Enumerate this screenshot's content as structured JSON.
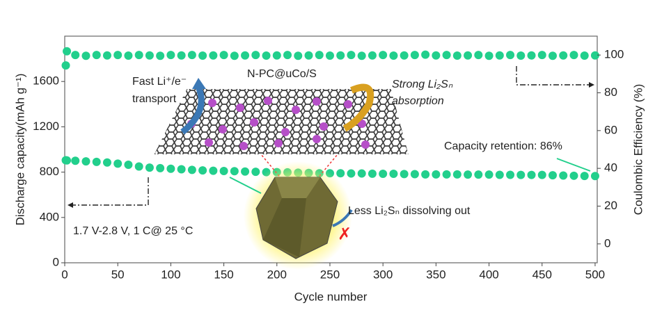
{
  "chart_data": {
    "type": "scatter",
    "x_label": "Cycle number",
    "y_label": "Discharge capacity(mAh g⁻¹)",
    "y2_label": "Coulombic Efficiency (%)",
    "x": [
      1,
      2,
      10,
      20,
      30,
      40,
      50,
      60,
      70,
      80,
      90,
      100,
      110,
      120,
      130,
      140,
      150,
      160,
      170,
      180,
      190,
      200,
      210,
      220,
      230,
      240,
      250,
      260,
      270,
      280,
      290,
      300,
      310,
      320,
      330,
      340,
      350,
      360,
      370,
      380,
      390,
      400,
      410,
      420,
      430,
      440,
      450,
      460,
      470,
      480,
      490,
      500
    ],
    "series": [
      {
        "name": "Discharge capacity",
        "color": "#22cf8c",
        "values": [
          905,
          903,
          900,
          895,
          890,
          885,
          875,
          865,
          850,
          840,
          835,
          830,
          825,
          820,
          815,
          812,
          810,
          808,
          805,
          803,
          800,
          800,
          798,
          795,
          793,
          790,
          790,
          790,
          788,
          788,
          786,
          785,
          785,
          783,
          782,
          780,
          780,
          780,
          780,
          778,
          778,
          778,
          776,
          776,
          775,
          775,
          775,
          772,
          770,
          768,
          766,
          765
        ]
      },
      {
        "name": "Coulombic Efficiency",
        "color": "#22cf8c",
        "axis": "y2",
        "values": [
          94.5,
          102,
          100,
          99.6,
          100,
          99.8,
          100,
          99.7,
          100,
          99.8,
          99.6,
          100,
          99.8,
          100,
          99.7,
          99.8,
          100,
          99.6,
          99.8,
          100,
          99.7,
          99.8,
          100,
          99.6,
          99.8,
          100,
          99.7,
          99.8,
          100,
          99.6,
          99.8,
          100,
          99.7,
          99.8,
          100,
          100.2,
          99.8,
          100,
          99.7,
          99.8,
          100,
          99.6,
          99.8,
          100,
          99.7,
          99.8,
          100,
          99.6,
          99.8,
          100,
          99.7,
          99.8
        ]
      }
    ],
    "xlim": [
      0,
      502
    ],
    "xticks": [
      0,
      50,
      100,
      150,
      200,
      250,
      300,
      350,
      400,
      450,
      500
    ],
    "ylim": [
      0,
      2000
    ],
    "yticks": [
      0,
      400,
      800,
      1200,
      1600
    ],
    "y2lim": [
      -10,
      110
    ],
    "y2ticks": [
      0,
      20,
      40,
      60,
      80,
      100
    ],
    "annotations": {
      "material": "N-PC@uCo/S",
      "fast": "Fast Li⁺/e⁻",
      "transport": "transport",
      "strong": "Strong Li₂Sₙ",
      "absorption": "absorption",
      "retention": "Capacity retention: 86%",
      "less": "Less Li₂Sₙ dissolving out",
      "condition": "1.7 V-2.8 V, 1 C@ 25 °C"
    }
  }
}
